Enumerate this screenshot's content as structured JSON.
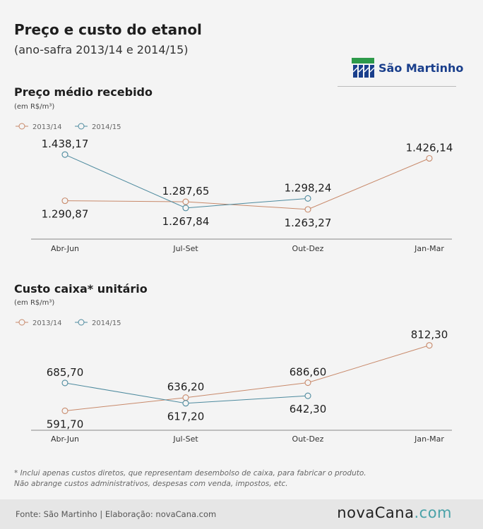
{
  "header": {
    "title": "Preço e custo do etanol",
    "subtitle": "(ano-safra 2013/14 e 2014/15)",
    "logo_text": "São Martinho"
  },
  "colors": {
    "series_2013": "#c8896a",
    "series_2014": "#4d8a9e",
    "axis": "#888888"
  },
  "chart_data": [
    {
      "type": "line",
      "title": "Preço médio recebido",
      "unit_label": "(em R$/m³)",
      "categories": [
        "Abr-Jun",
        "Jul-Set",
        "Out-Dez",
        "Jan-Mar"
      ],
      "ylim": [
        1200,
        1470
      ],
      "legend_position": "top-left",
      "grid": false,
      "series": [
        {
          "name": "2013/14",
          "values": [
            1290.87,
            1287.65,
            1263.27,
            1426.14
          ],
          "labels": [
            "1.290,87",
            "1.287,65",
            "1.263,27",
            "1.426,14"
          ],
          "label_pos": [
            "below",
            "above",
            "below",
            "above"
          ]
        },
        {
          "name": "2014/15",
          "values": [
            1438.17,
            1267.84,
            1298.24,
            null
          ],
          "labels": [
            "1.438,17",
            "1.267,84",
            "1.298,24",
            null
          ],
          "label_pos": [
            "above",
            "below",
            "above",
            null
          ]
        }
      ]
    },
    {
      "type": "line",
      "title": "Custo caixa* unitário",
      "unit_label": "(em R$/m³)",
      "categories": [
        "Abr-Jun",
        "Jul-Set",
        "Out-Dez",
        "Jan-Mar"
      ],
      "ylim": [
        550,
        840
      ],
      "legend_position": "top-left",
      "grid": false,
      "series": [
        {
          "name": "2013/14",
          "values": [
            591.7,
            636.2,
            686.6,
            812.3
          ],
          "labels": [
            "591,70",
            "636,20",
            "686,60",
            "812,30"
          ],
          "label_pos": [
            "below",
            "above",
            "above",
            "above"
          ]
        },
        {
          "name": "2014/15",
          "values": [
            685.7,
            617.2,
            642.3,
            null
          ],
          "labels": [
            "685,70",
            "617,20",
            "642,30",
            null
          ],
          "label_pos": [
            "above",
            "below",
            "below",
            null
          ]
        }
      ]
    }
  ],
  "notes": [
    "* Inclui apenas custos diretos, que representam desembolso de caixa, para fabricar o produto.",
    "Não abrange custos administrativos, despesas com venda, impostos, etc."
  ],
  "footer": {
    "source": "Fonte: São Martinho | Elaboração: novaCana.com",
    "brand_a": "novaCana",
    "brand_b": ".com"
  }
}
